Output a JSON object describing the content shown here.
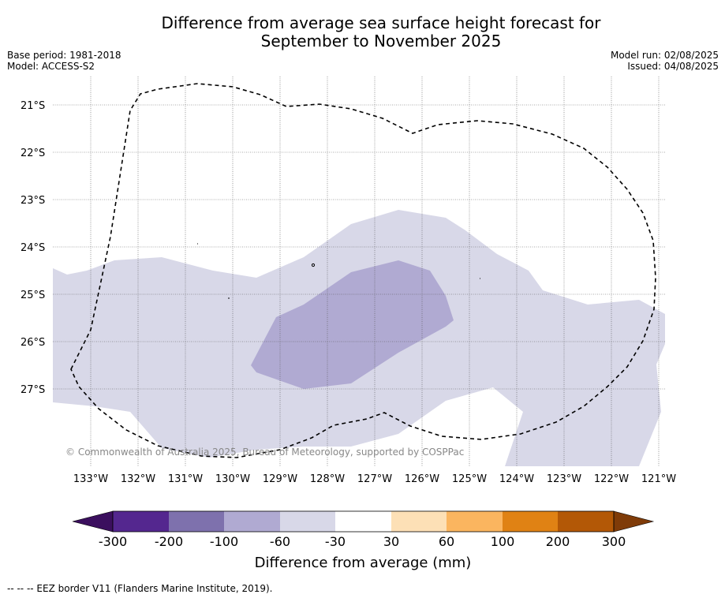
{
  "title": {
    "line1": "Difference from average sea surface height forecast for",
    "line2": "September to November 2025"
  },
  "meta_left": {
    "base_period": "Base period: 1981-2018",
    "model": "Model: ACCESS-S2"
  },
  "meta_right": {
    "model_run": "Model run: 02/08/2025",
    "issued": "Issued: 04/08/2025"
  },
  "map": {
    "lat_labels": [
      "21°S",
      "22°S",
      "23°S",
      "24°S",
      "25°S",
      "26°S",
      "27°S"
    ],
    "lon_labels": [
      "133°W",
      "132°W",
      "131°W",
      "130°W",
      "129°W",
      "128°W",
      "127°W",
      "126°W",
      "125°W",
      "124°W",
      "123°W",
      "122°W",
      "121°W"
    ],
    "copyright": "© Commonwealth of Australia 2025, Bureau of Meteorology, supported by COSPPac",
    "regions": [
      {
        "name": "-60 to -30 mm band",
        "color": "#d8d8e8"
      },
      {
        "name": "-100 to -60 mm band",
        "color": "#b0aad2"
      }
    ],
    "eez_border": "dashed"
  },
  "colorbar": {
    "ticks": [
      "-300",
      "-200",
      "-100",
      "-60",
      "-30",
      "30",
      "60",
      "100",
      "200",
      "300"
    ],
    "colors": [
      "#3b0f5e",
      "#54278f",
      "#7e71ad",
      "#b0aad2",
      "#d8d8e8",
      "#ffffff",
      "#fde0b6",
      "#fbb55f",
      "#e08214",
      "#b35806",
      "#7f3b08"
    ],
    "label": "Difference from average (mm)"
  },
  "footnote": "-- -- -- EEZ border V11 (Flanders Marine Institute, 2019)."
}
